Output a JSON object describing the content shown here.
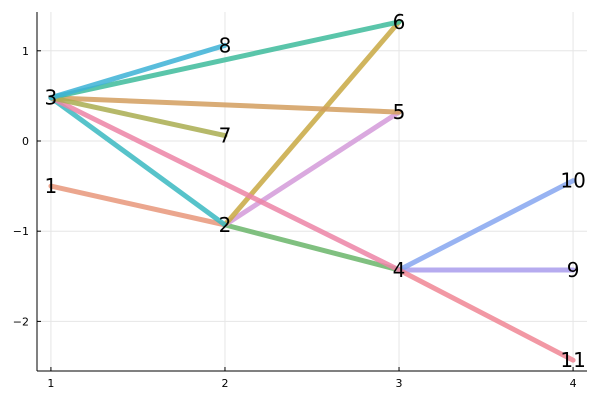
{
  "chart_data": {
    "type": "line",
    "title": "",
    "xlabel": "",
    "ylabel": "",
    "xlim": [
      0.92,
      4.08
    ],
    "ylim": [
      -2.55,
      1.43
    ],
    "grid": true,
    "legend": "none",
    "x_ticks": [
      1,
      2,
      3,
      4
    ],
    "y_ticks": [
      -2,
      -1,
      0,
      1
    ],
    "x_tick_labels": [
      "1",
      "2",
      "3",
      "4"
    ],
    "y_tick_labels": [
      "−2",
      "−1",
      "0",
      "1"
    ],
    "nodes": [
      {
        "label": "1",
        "x": 1,
        "y": -0.5
      },
      {
        "label": "2",
        "x": 2,
        "y": -0.93
      },
      {
        "label": "3",
        "x": 1,
        "y": 0.48
      },
      {
        "label": "4",
        "x": 3,
        "y": -1.43
      },
      {
        "label": "5",
        "x": 3,
        "y": 0.32
      },
      {
        "label": "6",
        "x": 3,
        "y": 1.32
      },
      {
        "label": "7",
        "x": 2,
        "y": 0.06
      },
      {
        "label": "8",
        "x": 2,
        "y": 1.06
      },
      {
        "label": "9",
        "x": 4,
        "y": -1.43
      },
      {
        "label": "10",
        "x": 4,
        "y": -0.44
      },
      {
        "label": "11",
        "x": 4,
        "y": -2.43
      }
    ],
    "edges": [
      {
        "from": "1",
        "to": "2",
        "color": "#e8967a"
      },
      {
        "from": "2",
        "to": "4",
        "color": "#6ab56a"
      },
      {
        "from": "2",
        "to": "5",
        "color": "#d39ad9"
      },
      {
        "from": "2",
        "to": "6",
        "color": "#c8a842"
      },
      {
        "from": "3",
        "to": "2",
        "color": "#39b9c1"
      },
      {
        "from": "3",
        "to": "4",
        "color": "#ec84a6"
      },
      {
        "from": "3",
        "to": "5",
        "color": "#d29e5e"
      },
      {
        "from": "3",
        "to": "6",
        "color": "#3dbb9b"
      },
      {
        "from": "3",
        "to": "7",
        "color": "#a9ad50"
      },
      {
        "from": "3",
        "to": "8",
        "color": "#3cb1d6"
      },
      {
        "from": "4",
        "to": "9",
        "color": "#a99cec"
      },
      {
        "from": "4",
        "to": "10",
        "color": "#86a6f0"
      },
      {
        "from": "4",
        "to": "11",
        "color": "#f08694"
      }
    ]
  }
}
